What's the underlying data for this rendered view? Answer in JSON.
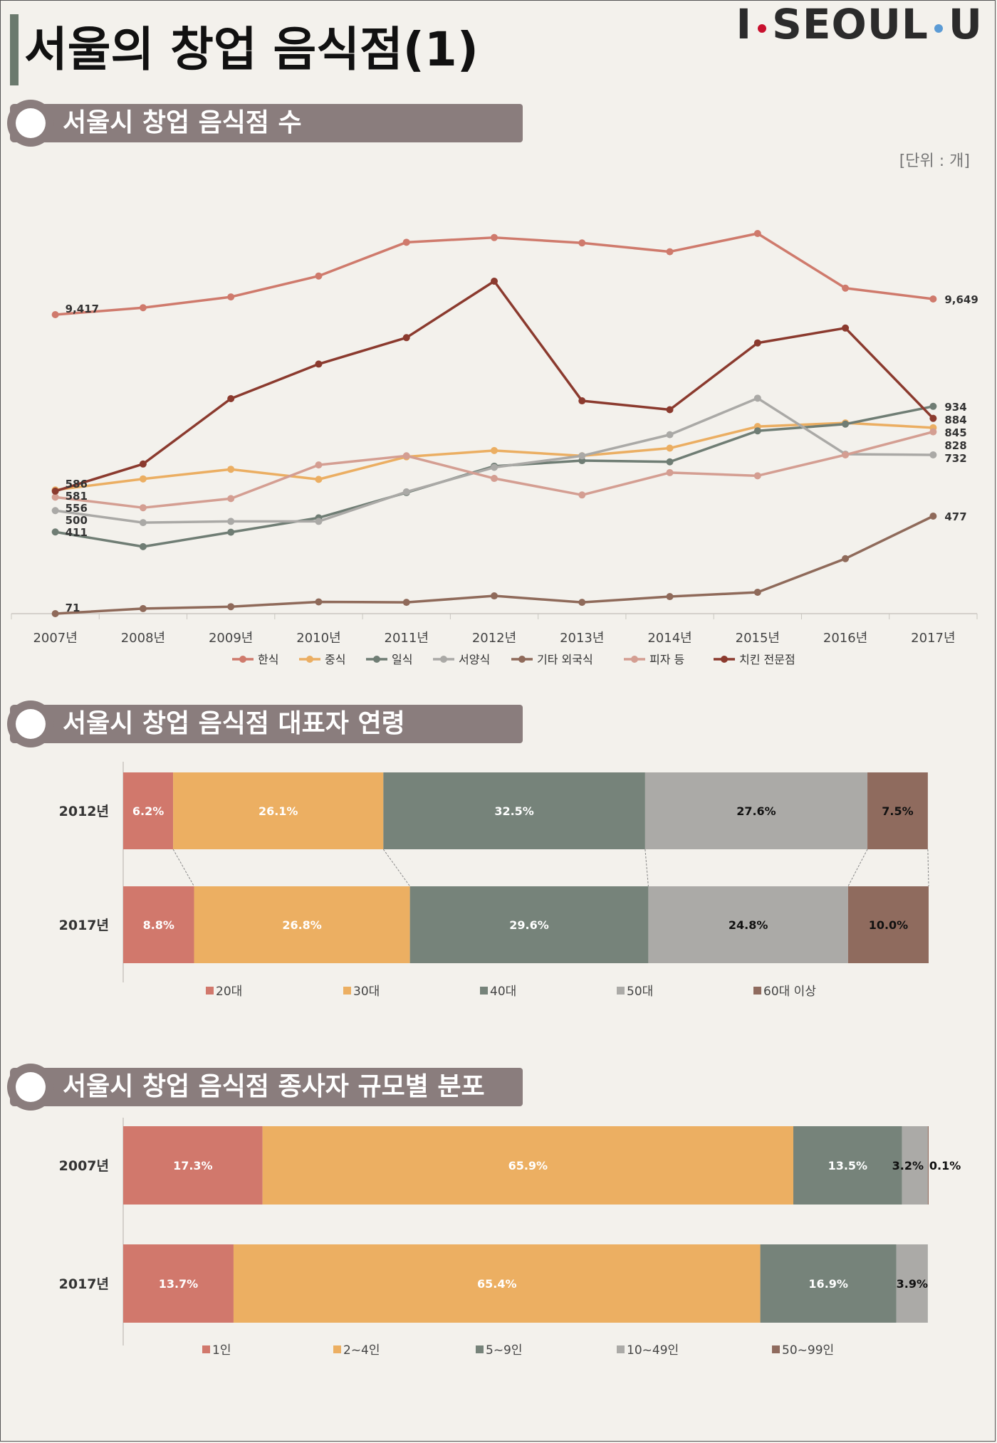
{
  "page": {
    "title": "서울의 창업 음식점(1)"
  },
  "brand": {
    "left": "I",
    "mid": "SEOUL",
    "right": "U",
    "dot1_color": "#c8102e",
    "dot2_color": "#5b9bd5"
  },
  "sections": {
    "s1": "서울시 창업 음식점 수",
    "s2": "서울시 창업 음식점 대표자 연령",
    "s3": "서울시 창업 음식점 종사자 규모별 분포"
  },
  "chart1_unit": "[단위 : 개]",
  "chart_data": [
    {
      "type": "line",
      "x": [
        "2007년",
        "2008년",
        "2009년",
        "2010년",
        "2011년",
        "2012년",
        "2013년",
        "2014년",
        "2015년",
        "2016년",
        "2017년"
      ],
      "series": [
        {
          "name": "한식",
          "color": "#cf7a6c",
          "values": [
            9417,
            9520,
            9680,
            9990,
            10490,
            10560,
            10480,
            10350,
            10620,
            9810,
            9649
          ],
          "labels": {
            "0": "9,417",
            "10": "9,649"
          }
        },
        {
          "name": "중식",
          "color": "#ebae62",
          "values": [
            586,
            632,
            672,
            630,
            724,
            750,
            728,
            760,
            850,
            865,
            845
          ],
          "labels": {
            "0": "586",
            "10": "845"
          }
        },
        {
          "name": "일식",
          "color": "#6f7d74",
          "values": [
            411,
            350,
            410,
            470,
            575,
            685,
            708,
            703,
            832,
            860,
            934
          ],
          "labels": {
            "0": "411",
            "10": "934"
          }
        },
        {
          "name": "서양식",
          "color": "#aaa9a6",
          "values": [
            500,
            450,
            455,
            455,
            578,
            680,
            728,
            816,
            968,
            735,
            732
          ],
          "labels": {
            "0": "500",
            "10": "732"
          }
        },
        {
          "name": "기타 외국식",
          "color": "#8f6a5a",
          "values": [
            71,
            92,
            100,
            120,
            118,
            145,
            118,
            142,
            160,
            300,
            477
          ],
          "labels": {
            "0": "71",
            "10": "477"
          }
        },
        {
          "name": "피자 등",
          "color": "#d49e92",
          "values": [
            556,
            512,
            550,
            690,
            728,
            634,
            565,
            658,
            645,
            732,
            828
          ],
          "labels": {
            "0": "556",
            "10": "828"
          }
        },
        {
          "name": "치킨 전문점",
          "color": "#8b3a2e",
          "values": [
            581,
            694,
            966,
            1110,
            1220,
            1455,
            957,
            920,
            1198,
            1260,
            884
          ],
          "labels": {
            "0": "581",
            "10": "884"
          }
        }
      ]
    },
    {
      "type": "bar",
      "stacked": "100%",
      "orientation": "horizontal",
      "categories": [
        "2012년",
        "2017년"
      ],
      "series": [
        {
          "name": "20대",
          "color": "#d1786c",
          "values": [
            6.2,
            8.8
          ],
          "label_color": "#ffffff"
        },
        {
          "name": "30대",
          "color": "#ecaf62",
          "values": [
            26.1,
            26.8
          ],
          "label_color": "#ffffff"
        },
        {
          "name": "40대",
          "color": "#76837a",
          "values": [
            32.5,
            29.6
          ],
          "label_color": "#ffffff"
        },
        {
          "name": "50대",
          "color": "#abaaa7",
          "values": [
            27.6,
            24.8
          ],
          "label_color": "#111111"
        },
        {
          "name": "60대 이상",
          "color": "#8f6b5e",
          "values": [
            7.5,
            10.0
          ],
          "label_color": "#111111"
        }
      ],
      "data_labels": [
        [
          "6.2%",
          "26.1%",
          "32.5%",
          "27.6%",
          "7.5%"
        ],
        [
          "8.8%",
          "26.8%",
          "29.6%",
          "24.8%",
          "10.0%"
        ]
      ]
    },
    {
      "type": "bar",
      "stacked": "100%",
      "orientation": "horizontal",
      "categories": [
        "2007년",
        "2017년"
      ],
      "series": [
        {
          "name": "1인",
          "color": "#d1786c",
          "values": [
            17.3,
            13.7
          ],
          "label_color": "#ffffff"
        },
        {
          "name": "2~4인",
          "color": "#ecaf62",
          "values": [
            65.9,
            65.4
          ],
          "label_color": "#ffffff"
        },
        {
          "name": "5~9인",
          "color": "#76837a",
          "values": [
            13.5,
            16.9
          ],
          "label_color": "#ffffff"
        },
        {
          "name": "10~49인",
          "color": "#abaaa7",
          "values": [
            3.2,
            3.9
          ],
          "label_color": "#111111"
        },
        {
          "name": "50~99인",
          "color": "#8f6b5e",
          "values": [
            0.1,
            0
          ],
          "label_color": "#111111"
        }
      ],
      "data_labels": [
        [
          "17.3%",
          "65.9%",
          "13.5%",
          "3.2%",
          "0.1%"
        ],
        [
          "13.7%",
          "65.4%",
          "16.9%",
          "3.9%",
          ""
        ]
      ]
    }
  ]
}
